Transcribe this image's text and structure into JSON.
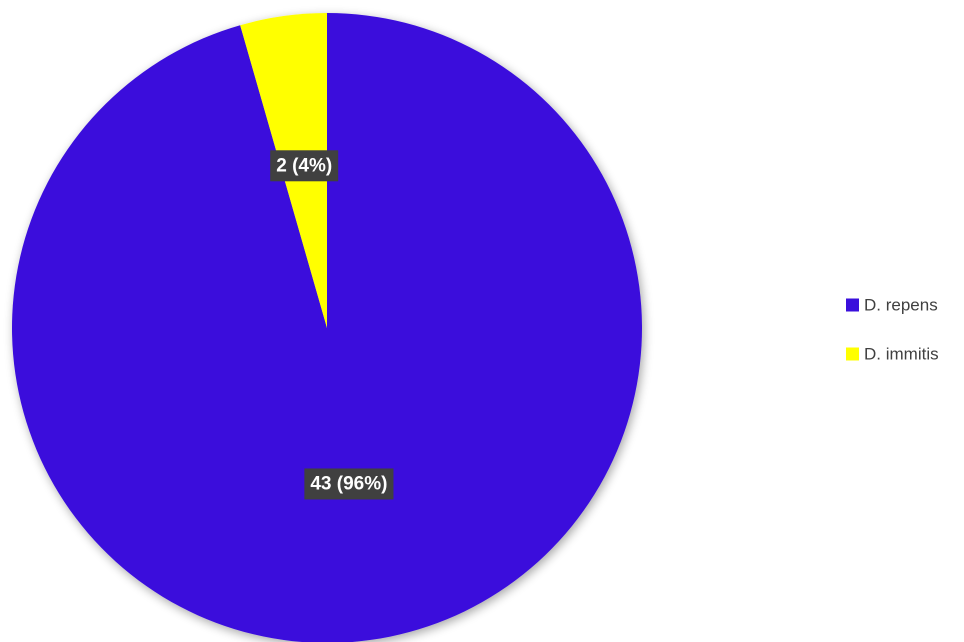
{
  "chart_data": {
    "type": "pie",
    "title": "",
    "series": [
      {
        "values": [
          43,
          2
        ]
      }
    ],
    "categories": [
      "D. repens",
      "D. immitis"
    ],
    "colors": [
      "#3A0FDC",
      "#FFFF00"
    ],
    "data_labels": [
      "43 (96%)",
      "2 (4%)"
    ],
    "legend_position": "right"
  }
}
